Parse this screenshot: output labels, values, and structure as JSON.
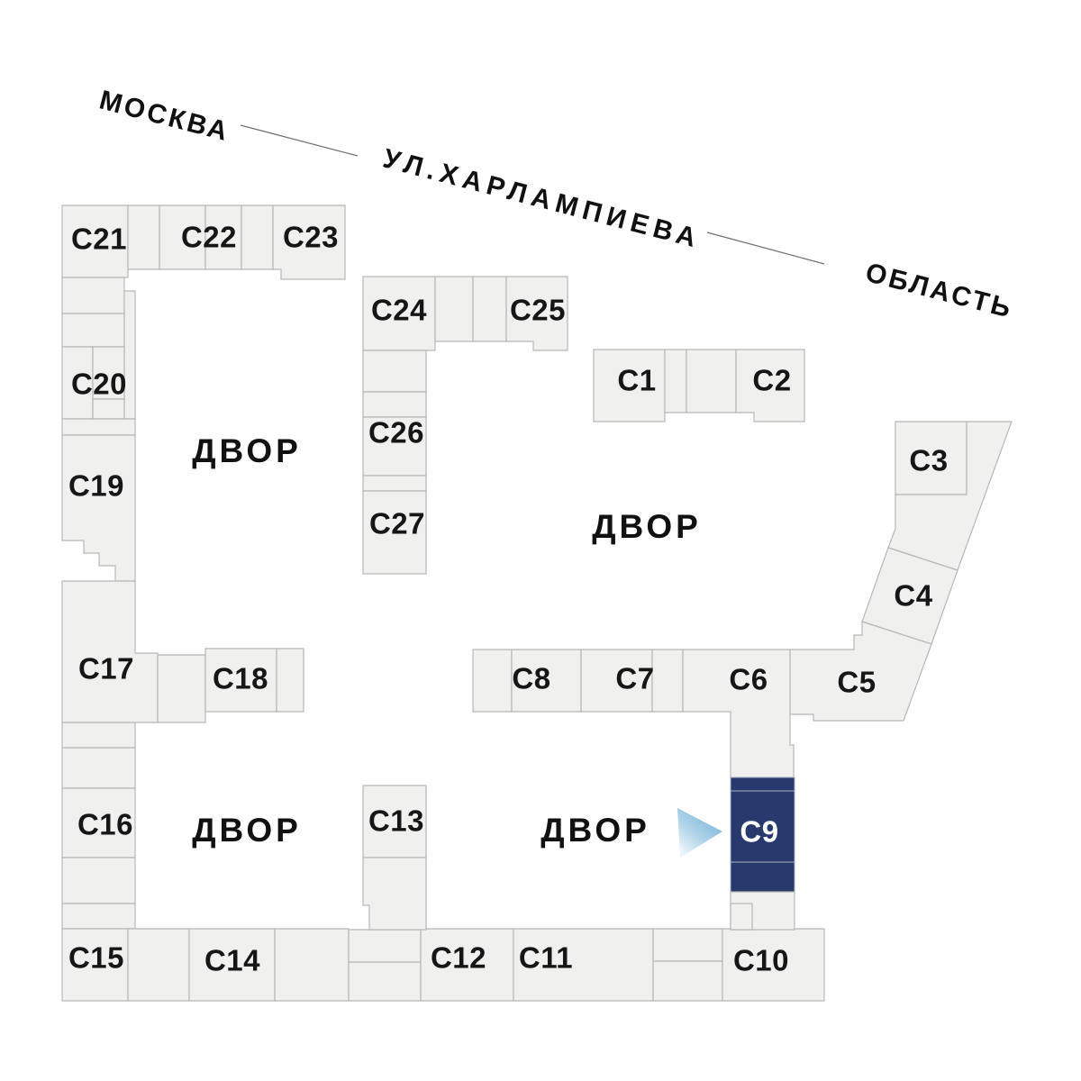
{
  "streets": {
    "city_label": "МОСКВА",
    "street_label": "УЛ.ХАРЛАМПИЕВА",
    "region_label": "ОБЛАСТЬ"
  },
  "courtyard": {
    "label": "ДВОР"
  },
  "selected_building": "С9",
  "colors": {
    "building_fill": "#f0f0ee",
    "building_stroke": "#b7b7b5",
    "highlight_fill": "#283a6d",
    "highlight_text": "#ffffff",
    "arrow_dark": "#79b6da",
    "arrow_light": "#eef6fb",
    "text": "#161616"
  },
  "buildings": [
    {
      "id": "c1",
      "label": "С1"
    },
    {
      "id": "c2",
      "label": "С2"
    },
    {
      "id": "c3",
      "label": "С3"
    },
    {
      "id": "c4",
      "label": "С4"
    },
    {
      "id": "c5",
      "label": "С5"
    },
    {
      "id": "c6",
      "label": "С6"
    },
    {
      "id": "c7",
      "label": "С7"
    },
    {
      "id": "c8",
      "label": "С8"
    },
    {
      "id": "c9",
      "label": "С9",
      "highlighted": true
    },
    {
      "id": "c10",
      "label": "С10"
    },
    {
      "id": "c11",
      "label": "С11"
    },
    {
      "id": "c12",
      "label": "С12"
    },
    {
      "id": "c13",
      "label": "С13"
    },
    {
      "id": "c14",
      "label": "С14"
    },
    {
      "id": "c15",
      "label": "С15"
    },
    {
      "id": "c16",
      "label": "С16"
    },
    {
      "id": "c17",
      "label": "С17"
    },
    {
      "id": "c18",
      "label": "С18"
    },
    {
      "id": "c19",
      "label": "С19"
    },
    {
      "id": "c20",
      "label": "С20"
    },
    {
      "id": "c21",
      "label": "С21"
    },
    {
      "id": "c22",
      "label": "С22"
    },
    {
      "id": "c23",
      "label": "С23"
    },
    {
      "id": "c24",
      "label": "С24"
    },
    {
      "id": "c25",
      "label": "С25"
    },
    {
      "id": "c26",
      "label": "С26"
    },
    {
      "id": "c27",
      "label": "С27"
    }
  ]
}
